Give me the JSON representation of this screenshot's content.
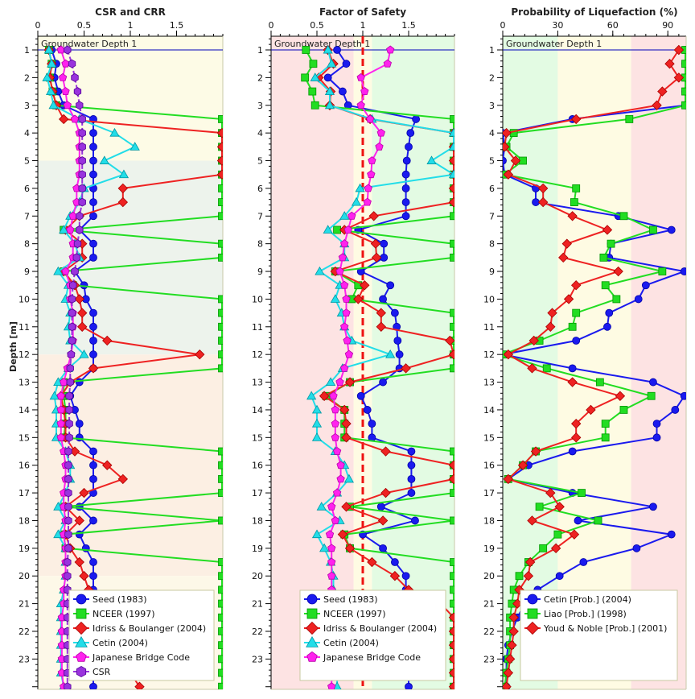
{
  "chart_data": [
    {
      "type": "line",
      "id": "csr",
      "title": "CSR and CRR",
      "xlabel": "",
      "ylabel": "Depth [m]",
      "xlim": [
        0,
        2.0
      ],
      "ylim": [
        24,
        0.5
      ],
      "xticks": [
        0,
        0.5,
        1,
        1.5
      ],
      "xtick_labels": [
        "0",
        "0.5",
        "1",
        "1.5"
      ],
      "yticks": [
        1,
        2,
        3,
        4,
        5,
        6,
        7,
        8,
        9,
        10,
        11,
        12,
        13,
        14,
        15,
        16,
        17,
        18,
        19,
        20,
        21,
        22,
        23
      ],
      "groundwater": {
        "depth": 1,
        "label": "Groundwater Depth 1"
      },
      "bands": [
        {
          "from": 0.5,
          "to": 5,
          "color": "#fdfbe6"
        },
        {
          "from": 5,
          "to": 12,
          "color": "#edf3ec"
        },
        {
          "from": 12,
          "to": 20,
          "color": "#fcefe3"
        },
        {
          "from": 20,
          "to": 24,
          "color": "#fdf8e8"
        }
      ],
      "legend_position": "bottom-center",
      "depths": [
        1,
        1.5,
        2,
        2.5,
        3,
        3.5,
        4,
        4.5,
        5,
        5.5,
        6,
        6.5,
        7,
        7.5,
        8,
        8.5,
        9,
        9.5,
        10,
        10.5,
        11,
        11.5,
        12,
        12.5,
        13,
        13.5,
        14,
        14.5,
        15,
        15.5,
        16,
        16.5,
        17,
        17.5,
        18,
        18.5,
        19,
        19.5,
        20,
        20.5,
        21,
        21.5,
        22,
        22.5,
        23,
        23.5,
        24
      ],
      "series": [
        {
          "name": "Seed (1983)",
          "color": "#1a1aee",
          "marker": "circle",
          "values": [
            0.15,
            0.2,
            0.18,
            0.22,
            0.28,
            0.6,
            0.6,
            0.6,
            0.6,
            0.6,
            0.6,
            0.6,
            0.6,
            0.45,
            0.6,
            0.6,
            0.4,
            0.5,
            0.52,
            0.6,
            0.6,
            0.6,
            0.6,
            0.6,
            0.45,
            0.35,
            0.4,
            0.45,
            0.45,
            0.6,
            0.6,
            0.6,
            0.6,
            0.45,
            0.6,
            0.45,
            0.52,
            0.6,
            0.6,
            0.6,
            0.6,
            0.6,
            0.6,
            0.6,
            0.6,
            0.6,
            0.6
          ]
        },
        {
          "name": "NCEER (1997)",
          "color": "#22dd22",
          "marker": "square",
          "values": [
            0.12,
            0.15,
            0.13,
            0.16,
            0.2,
            2.0,
            2.0,
            2.0,
            2.0,
            2.0,
            2.0,
            2.0,
            2.0,
            0.28,
            2.0,
            2.0,
            0.28,
            0.38,
            2.0,
            2.0,
            2.0,
            2.0,
            2.0,
            2.0,
            0.28,
            0.28,
            0.3,
            0.3,
            0.28,
            2.0,
            2.0,
            2.0,
            2.0,
            0.28,
            2.0,
            0.28,
            0.3,
            2.0,
            2.0,
            2.0,
            2.0,
            2.0,
            2.0,
            2.0,
            2.0,
            2.0,
            2.0
          ]
        },
        {
          "name": "Idriss & Boulanger (2004)",
          "color": "#ee2222",
          "marker": "diamond",
          "values": [
            0.12,
            0.15,
            0.13,
            0.16,
            0.2,
            0.28,
            2.0,
            2.0,
            2.0,
            2.0,
            0.92,
            0.92,
            0.45,
            0.3,
            0.48,
            0.48,
            0.28,
            0.4,
            0.45,
            0.48,
            0.48,
            0.75,
            1.75,
            0.6,
            0.35,
            0.25,
            0.28,
            0.3,
            0.3,
            0.4,
            0.75,
            0.92,
            0.5,
            0.3,
            0.45,
            0.3,
            0.35,
            0.45,
            0.5,
            0.55,
            0.75,
            0.9,
            0.9,
            0.9,
            0.9,
            1.0,
            1.1
          ]
        },
        {
          "name": "Cetin (2004)",
          "color": "#22dde8",
          "marker": "triangle",
          "values": [
            0.12,
            0.15,
            0.1,
            0.14,
            0.17,
            0.45,
            0.83,
            1.05,
            0.72,
            0.93,
            0.5,
            0.45,
            0.35,
            0.28,
            0.4,
            0.45,
            0.22,
            0.33,
            0.3,
            0.35,
            0.33,
            0.35,
            0.5,
            0.33,
            0.22,
            0.18,
            0.2,
            0.2,
            0.2,
            0.3,
            0.35,
            0.35,
            0.3,
            0.22,
            0.3,
            0.22,
            0.3,
            0.3,
            0.3,
            0.28,
            0.25,
            0.25,
            0.25,
            0.25,
            0.25,
            0.25,
            0.28
          ]
        },
        {
          "name": "Japanese Bridge Code",
          "color": "#ff22ee",
          "marker": "pentagon",
          "values": [
            0.25,
            0.3,
            0.27,
            0.3,
            0.32,
            0.4,
            0.45,
            0.45,
            0.45,
            0.45,
            0.42,
            0.42,
            0.38,
            0.35,
            0.38,
            0.38,
            0.3,
            0.35,
            0.35,
            0.38,
            0.38,
            0.38,
            0.36,
            0.32,
            0.28,
            0.25,
            0.25,
            0.25,
            0.25,
            0.28,
            0.3,
            0.3,
            0.28,
            0.28,
            0.3,
            0.28,
            0.3,
            0.3,
            0.3,
            0.28,
            0.28,
            0.26,
            0.26,
            0.26,
            0.26,
            0.26,
            0.28
          ]
        },
        {
          "name": "CSR",
          "color": "#9933dd",
          "marker": "hexagon",
          "values": [
            0.32,
            0.37,
            0.4,
            0.43,
            0.45,
            0.48,
            0.48,
            0.48,
            0.48,
            0.48,
            0.48,
            0.48,
            0.45,
            0.45,
            0.43,
            0.42,
            0.4,
            0.38,
            0.37,
            0.37,
            0.37,
            0.37,
            0.36,
            0.35,
            0.35,
            0.34,
            0.34,
            0.34,
            0.34,
            0.33,
            0.33,
            0.33,
            0.33,
            0.33,
            0.33,
            0.33,
            0.33,
            0.32,
            0.32,
            0.32,
            0.32,
            0.32,
            0.32,
            0.32,
            0.32,
            0.32,
            0.32
          ]
        }
      ]
    },
    {
      "type": "line",
      "id": "fos",
      "title": "Factor of Safety",
      "xlabel": "",
      "ylabel": "",
      "xlim": [
        0,
        2.0
      ],
      "ylim": [
        24,
        0.5
      ],
      "xticks": [
        0,
        0.5,
        1,
        1.5
      ],
      "xtick_labels": [
        "0",
        "0.5",
        "1",
        "1.5"
      ],
      "groundwater": {
        "depth": 1,
        "label": "Groundwater Depth 1"
      },
      "threshold_line": {
        "value": 1.0,
        "color": "#ee1111",
        "style": "dashed"
      },
      "xbands": [
        {
          "from": 0,
          "to": 0.9,
          "color": "#fde3e3"
        },
        {
          "from": 0.9,
          "to": 1.1,
          "color": "#fefbe3"
        },
        {
          "from": 1.1,
          "to": 2.0,
          "color": "#e3fbe3"
        }
      ],
      "legend_position": "bottom-center",
      "depths": [
        1,
        1.5,
        2,
        2.5,
        3,
        3.5,
        4,
        4.5,
        5,
        5.5,
        6,
        6.5,
        7,
        7.5,
        8,
        8.5,
        9,
        9.5,
        10,
        10.5,
        11,
        11.5,
        12,
        12.5,
        13,
        13.5,
        14,
        14.5,
        15,
        15.5,
        16,
        16.5,
        17,
        17.5,
        18,
        18.5,
        19,
        19.5,
        20,
        20.5,
        21,
        21.5,
        22,
        22.5,
        23,
        23.5,
        24
      ],
      "series": [
        {
          "name": "Seed (1983)",
          "color": "#1a1aee",
          "marker": "circle",
          "values": [
            0.72,
            0.82,
            0.62,
            0.78,
            0.84,
            1.58,
            1.52,
            1.5,
            1.48,
            1.47,
            1.47,
            1.47,
            1.47,
            0.95,
            1.23,
            1.23,
            0.98,
            1.3,
            1.22,
            1.35,
            1.37,
            1.38,
            1.4,
            1.4,
            1.22,
            0.98,
            1.05,
            1.1,
            1.1,
            1.53,
            1.53,
            1.53,
            1.53,
            1.2,
            1.57,
            1.0,
            1.22,
            1.35,
            1.47,
            1.47,
            1.5,
            1.5,
            1.5,
            1.5,
            1.5,
            1.5,
            1.5
          ]
        },
        {
          "name": "NCEER (1997)",
          "color": "#22dd22",
          "marker": "square",
          "values": [
            0.38,
            0.46,
            0.37,
            0.45,
            0.48,
            2.0,
            2.0,
            2.0,
            2.0,
            2.0,
            2.0,
            2.0,
            2.0,
            0.72,
            2.0,
            2.0,
            0.7,
            0.95,
            0.88,
            2.0,
            2.0,
            2.0,
            2.0,
            2.0,
            0.86,
            0.6,
            0.8,
            0.8,
            0.8,
            2.0,
            2.0,
            2.0,
            2.0,
            0.86,
            2.0,
            0.8,
            0.86,
            2.0,
            2.0,
            2.0,
            2.0,
            2.0,
            2.0,
            2.0,
            2.0,
            2.0,
            2.0
          ]
        },
        {
          "name": "Idriss & Boulanger (2004)",
          "color": "#ee2222",
          "marker": "diamond",
          "values": [
            0.62,
            0.68,
            0.52,
            0.65,
            0.64,
            1.08,
            2.0,
            2.0,
            2.0,
            2.0,
            2.0,
            2.0,
            1.12,
            0.8,
            1.14,
            1.15,
            0.7,
            1.02,
            0.95,
            1.2,
            1.2,
            1.95,
            2.0,
            1.47,
            0.86,
            0.58,
            0.8,
            0.82,
            0.82,
            1.25,
            2.0,
            2.0,
            1.25,
            0.82,
            1.22,
            0.78,
            0.86,
            1.1,
            1.35,
            1.5,
            1.85,
            2.0,
            2.0,
            2.0,
            2.0,
            2.0,
            2.0
          ]
        },
        {
          "name": "Cetin (2004)",
          "color": "#22dde8",
          "marker": "triangle",
          "values": [
            0.62,
            0.66,
            0.48,
            0.64,
            0.64,
            1.1,
            2.0,
            2.0,
            1.75,
            2.0,
            0.97,
            0.93,
            0.8,
            0.62,
            0.8,
            0.8,
            0.53,
            0.75,
            0.7,
            0.77,
            0.8,
            0.88,
            1.3,
            0.78,
            0.65,
            0.44,
            0.5,
            0.5,
            0.5,
            0.7,
            0.8,
            0.85,
            0.72,
            0.55,
            0.75,
            0.5,
            0.58,
            0.65,
            0.68,
            0.68,
            0.7,
            0.72,
            0.72,
            0.72,
            0.72,
            0.72,
            0.72
          ]
        },
        {
          "name": "Japanese Bridge Code",
          "color": "#ff22ee",
          "marker": "pentagon",
          "values": [
            1.3,
            1.27,
            0.98,
            1.02,
            0.98,
            1.08,
            1.2,
            1.18,
            1.1,
            1.09,
            1.06,
            1.05,
            0.88,
            0.84,
            0.8,
            0.78,
            0.75,
            0.8,
            0.82,
            0.82,
            0.8,
            0.83,
            0.85,
            0.8,
            0.75,
            0.68,
            0.7,
            0.7,
            0.7,
            0.72,
            0.76,
            0.76,
            0.72,
            0.66,
            0.7,
            0.64,
            0.66,
            0.66,
            0.66,
            0.66,
            0.66,
            0.66,
            0.66,
            0.66,
            0.66,
            0.66,
            0.66
          ]
        }
      ]
    },
    {
      "type": "line",
      "id": "pl",
      "title": "Probability of Liquefaction (%)",
      "xlabel": "",
      "ylabel": "",
      "xlim": [
        0,
        100
      ],
      "ylim": [
        24,
        0.5
      ],
      "xticks": [
        0,
        30,
        60,
        90
      ],
      "xtick_labels": [
        "0",
        "30",
        "60",
        "90"
      ],
      "groundwater": {
        "depth": 1,
        "label": "Groundwater Depth 1"
      },
      "xbands": [
        {
          "from": 0,
          "to": 30,
          "color": "#e3fbe3"
        },
        {
          "from": 30,
          "to": 70,
          "color": "#fefbe3"
        },
        {
          "from": 70,
          "to": 100,
          "color": "#fde3e3"
        }
      ],
      "legend_position": "bottom-right",
      "depths": [
        1,
        1.5,
        2,
        2.5,
        3,
        3.5,
        4,
        4.5,
        5,
        5.5,
        6,
        6.5,
        7,
        7.5,
        8,
        8.5,
        9,
        9.5,
        10,
        10.5,
        11,
        11.5,
        12,
        12.5,
        13,
        13.5,
        14,
        14.5,
        15,
        15.5,
        16,
        16.5,
        17,
        17.5,
        18,
        18.5,
        19,
        19.5,
        20,
        20.5,
        21,
        21.5,
        22,
        22.5,
        23,
        23.5,
        24
      ],
      "series": [
        {
          "name": "Cetin [Prob.] (2004)",
          "color": "#1a1aee",
          "marker": "circle",
          "values": [
            100,
            100,
            100,
            100,
            100,
            38,
            0,
            1,
            0,
            1,
            18,
            18,
            63,
            92,
            59,
            58,
            99,
            78,
            74,
            58,
            57,
            40,
            0,
            38,
            82,
            99,
            94,
            84,
            84,
            38,
            14,
            3,
            38,
            82,
            41,
            92,
            73,
            44,
            31,
            19,
            12,
            8,
            5,
            3,
            2,
            2,
            2
          ]
        },
        {
          "name": "Liao [Prob.] (1998)",
          "color": "#22dd22",
          "marker": "square",
          "values": [
            100,
            100,
            100,
            100,
            100,
            69,
            6,
            2,
            11,
            1,
            40,
            39,
            66,
            82,
            59,
            55,
            87,
            56,
            62,
            40,
            38,
            20,
            0,
            24,
            53,
            81,
            66,
            56,
            56,
            18,
            11,
            3,
            43,
            20,
            52,
            30,
            22,
            14,
            9,
            6,
            5,
            4,
            4,
            4,
            3,
            2,
            1
          ]
        },
        {
          "name": "Youd & Noble [Prob.] (2001)",
          "color": "#ee2222",
          "marker": "diamond",
          "values": [
            96,
            91,
            96,
            87,
            84,
            40,
            2,
            1,
            7,
            3,
            22,
            22,
            38,
            57,
            35,
            33,
            63,
            40,
            36,
            27,
            26,
            17,
            3,
            16,
            38,
            64,
            48,
            40,
            40,
            18,
            11,
            3,
            26,
            31,
            16,
            39,
            29,
            15,
            14,
            9,
            8,
            6,
            6,
            5,
            4,
            3,
            2
          ]
        }
      ]
    }
  ]
}
